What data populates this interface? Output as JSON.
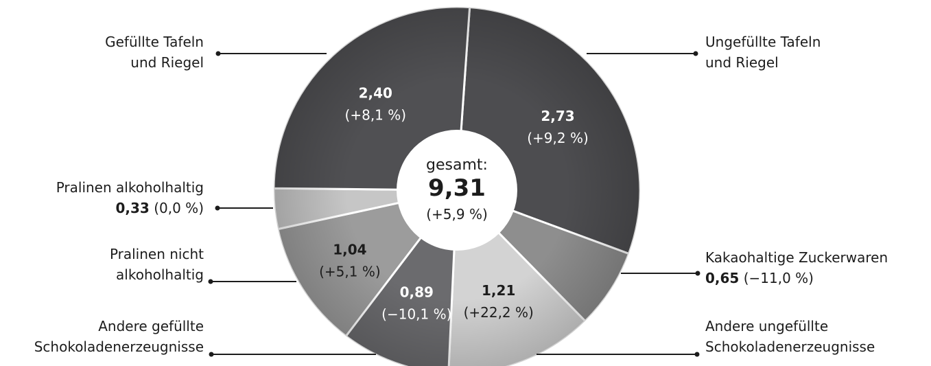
{
  "chart_data": {
    "type": "pie",
    "total": {
      "label": "gesamt:",
      "value": "9,31",
      "change": "(+5,9 %)"
    },
    "segments": [
      {
        "name_lines": [
          "Ungefüllte Tafeln",
          "und Riegel"
        ],
        "value": 2.73,
        "value_text": "2,73",
        "change_text": "(+9,2 %)",
        "color": "#4d4d50"
      },
      {
        "name_lines": [
          "Kakaohaltige Zuckerwaren"
        ],
        "value": 0.65,
        "value_text": "0,65",
        "change_text": "(−11,0 %)",
        "color": "#8e8e8e"
      },
      {
        "name_lines": [
          "Andere ungefüllte",
          "Schokoladenerzeugnisse"
        ],
        "value": 1.21,
        "value_text": "1,21",
        "change_text": "(+22,2 %)",
        "color": "#d3d3d3"
      },
      {
        "name_lines": [
          "Andere gefüllte",
          "Schokoladenerzeugnisse"
        ],
        "value": 0.89,
        "value_text": "0,89",
        "change_text": "(−10,1 %)",
        "color": "#6b6b6e"
      },
      {
        "name_lines": [
          "Pralinen nicht",
          "alkoholhaltig"
        ],
        "value": 1.04,
        "value_text": "1,04",
        "change_text": "(+5,1 %)",
        "color": "#9c9c9c"
      },
      {
        "name_lines": [
          "Pralinen alkoholhaltig"
        ],
        "value": 0.33,
        "value_text": "0,33",
        "change_text": "(0,0 %)",
        "color": "#c6c6c6"
      },
      {
        "name_lines": [
          "Gefüllte Tafeln",
          "und Riegel"
        ],
        "value": 2.4,
        "value_text": "2,40",
        "change_text": "(+8,1 %)",
        "color": "#505053"
      }
    ]
  }
}
